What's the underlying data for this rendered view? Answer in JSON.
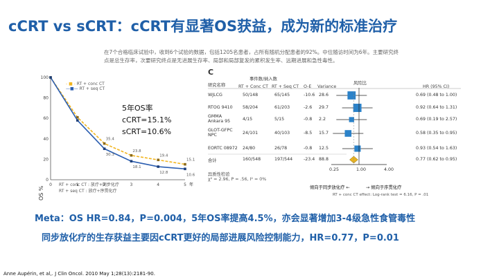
{
  "title": "cCRT vs sCRT：cCRT有显著OS获益，成为新的标准治疗",
  "intro": "在7个合格临床试验中，收到6个试验的数据，包括1205名患者，占所有随机分配患者的92%。中位随访时间为6年。主要研究终点是总生存率，次要研究终点是无进展生存率、局部和局部复发的累积发生率、远期进展和急性毒性。",
  "km_chart": {
    "ylabel": "OS %",
    "legend": [
      "RT + conc CT",
      "RT + seq CT"
    ],
    "legend_lower": [
      "RT + conc CT : 放疗+同步化疗",
      "RT + seq CT : 放疗+序贯化疗"
    ],
    "annotation": [
      "5年OS率",
      "cCRT=15.1%",
      "sCRT=10.6%"
    ]
  },
  "chart_data": {
    "type": "line",
    "ylabel": "OS %",
    "xlabel": "",
    "x_unit": "年",
    "x": [
      0,
      1,
      2,
      3,
      4,
      5
    ],
    "ylim": [
      0,
      100
    ],
    "yticks": [
      0,
      20,
      40,
      60,
      80,
      100
    ],
    "series": [
      {
        "name": "RT + conc CT",
        "color": "#f2b51f",
        "values": [
          100,
          61,
          35.4,
          23.8,
          19.4,
          15.1
        ]
      },
      {
        "name": "RT + seq CT",
        "color": "#2a5db0",
        "values": [
          100,
          58,
          30.3,
          18.1,
          12.8,
          10.6
        ]
      }
    ],
    "point_labels": {
      "RT + conc CT": [
        "",
        "",
        "35.4",
        "23.8",
        "19.4",
        "15.1"
      ],
      "RT + seq CT": [
        "",
        "",
        "30.3",
        "18.1",
        "12.8",
        "10.6"
      ]
    }
  },
  "forest": {
    "panel_letter": "C",
    "events_header": "事件数/纳入数",
    "columns": [
      "研究名称",
      "RT + Conc CT",
      "RT + Seq CT",
      "O-E",
      "Variance",
      "风险比",
      "HR (95% CI)"
    ],
    "rows": [
      {
        "name": "WJLCG",
        "conc": "50/148",
        "seq": "65/145",
        "oe": "-10.6",
        "var": "28.6",
        "hr": 0.69,
        "hr_text": "0.69 (0.48 to 1.00)"
      },
      {
        "name": "RTOG 9410",
        "conc": "58/204",
        "seq": "61/203",
        "oe": "-2.6",
        "var": "29.7",
        "hr": 0.92,
        "hr_text": "0.92 (0.64 to 1.31)"
      },
      {
        "name": "GMMA Ankara 95",
        "conc": "4/15",
        "seq": "5/15",
        "oe": "-0.8",
        "var": "2.2",
        "hr": 0.69,
        "hr_text": "0.69 (0.19 to 2.57)"
      },
      {
        "name": "GLOT-GFPC NPC",
        "conc": "24/101",
        "seq": "40/103",
        "oe": "-8.5",
        "var": "15.7",
        "hr": 0.58,
        "hr_text": "0.58 (0.35 to 0.95)"
      },
      {
        "name": "EORTC 08972",
        "conc": "24/80",
        "seq": "26/78",
        "oe": "-0.8",
        "var": "12.5",
        "hr": 0.93,
        "hr_text": "0.93 (0.54 to 1.63)"
      }
    ],
    "total": {
      "name": "合计",
      "conc": "160/548",
      "seq": "197/544",
      "oe": "-23.4",
      "var": "88.8",
      "hr": 0.77,
      "hr_text": "0.77 (0.62 to 0.95)"
    },
    "heterogeneity_title": "异质性检验",
    "heterogeneity": "χ² = 2.96, P = .56, I² = 0%",
    "axis_ticks": [
      "0.25",
      "1.00",
      "4.00"
    ],
    "favor_left": "倾向于同步放化疗",
    "favor_right": "倾向于序贯化疗",
    "effect_note": "RT + conc CT effect: Log-rank test = 6.16, P = .01"
  },
  "meta_line1": "Meta：OS HR=0.84，P=0.004，5年OS率提高4.5%，亦会显著增加3-4级急性食管毒性",
  "meta_line2": "同步放化疗的生存获益主要因cCRT更好的局部进展风险控制能力，HR=0.77，P=0.01",
  "citation": "Anne Aupérin, et al,. J Clin Oncol. 2010 May 1;28(13):2181-90."
}
